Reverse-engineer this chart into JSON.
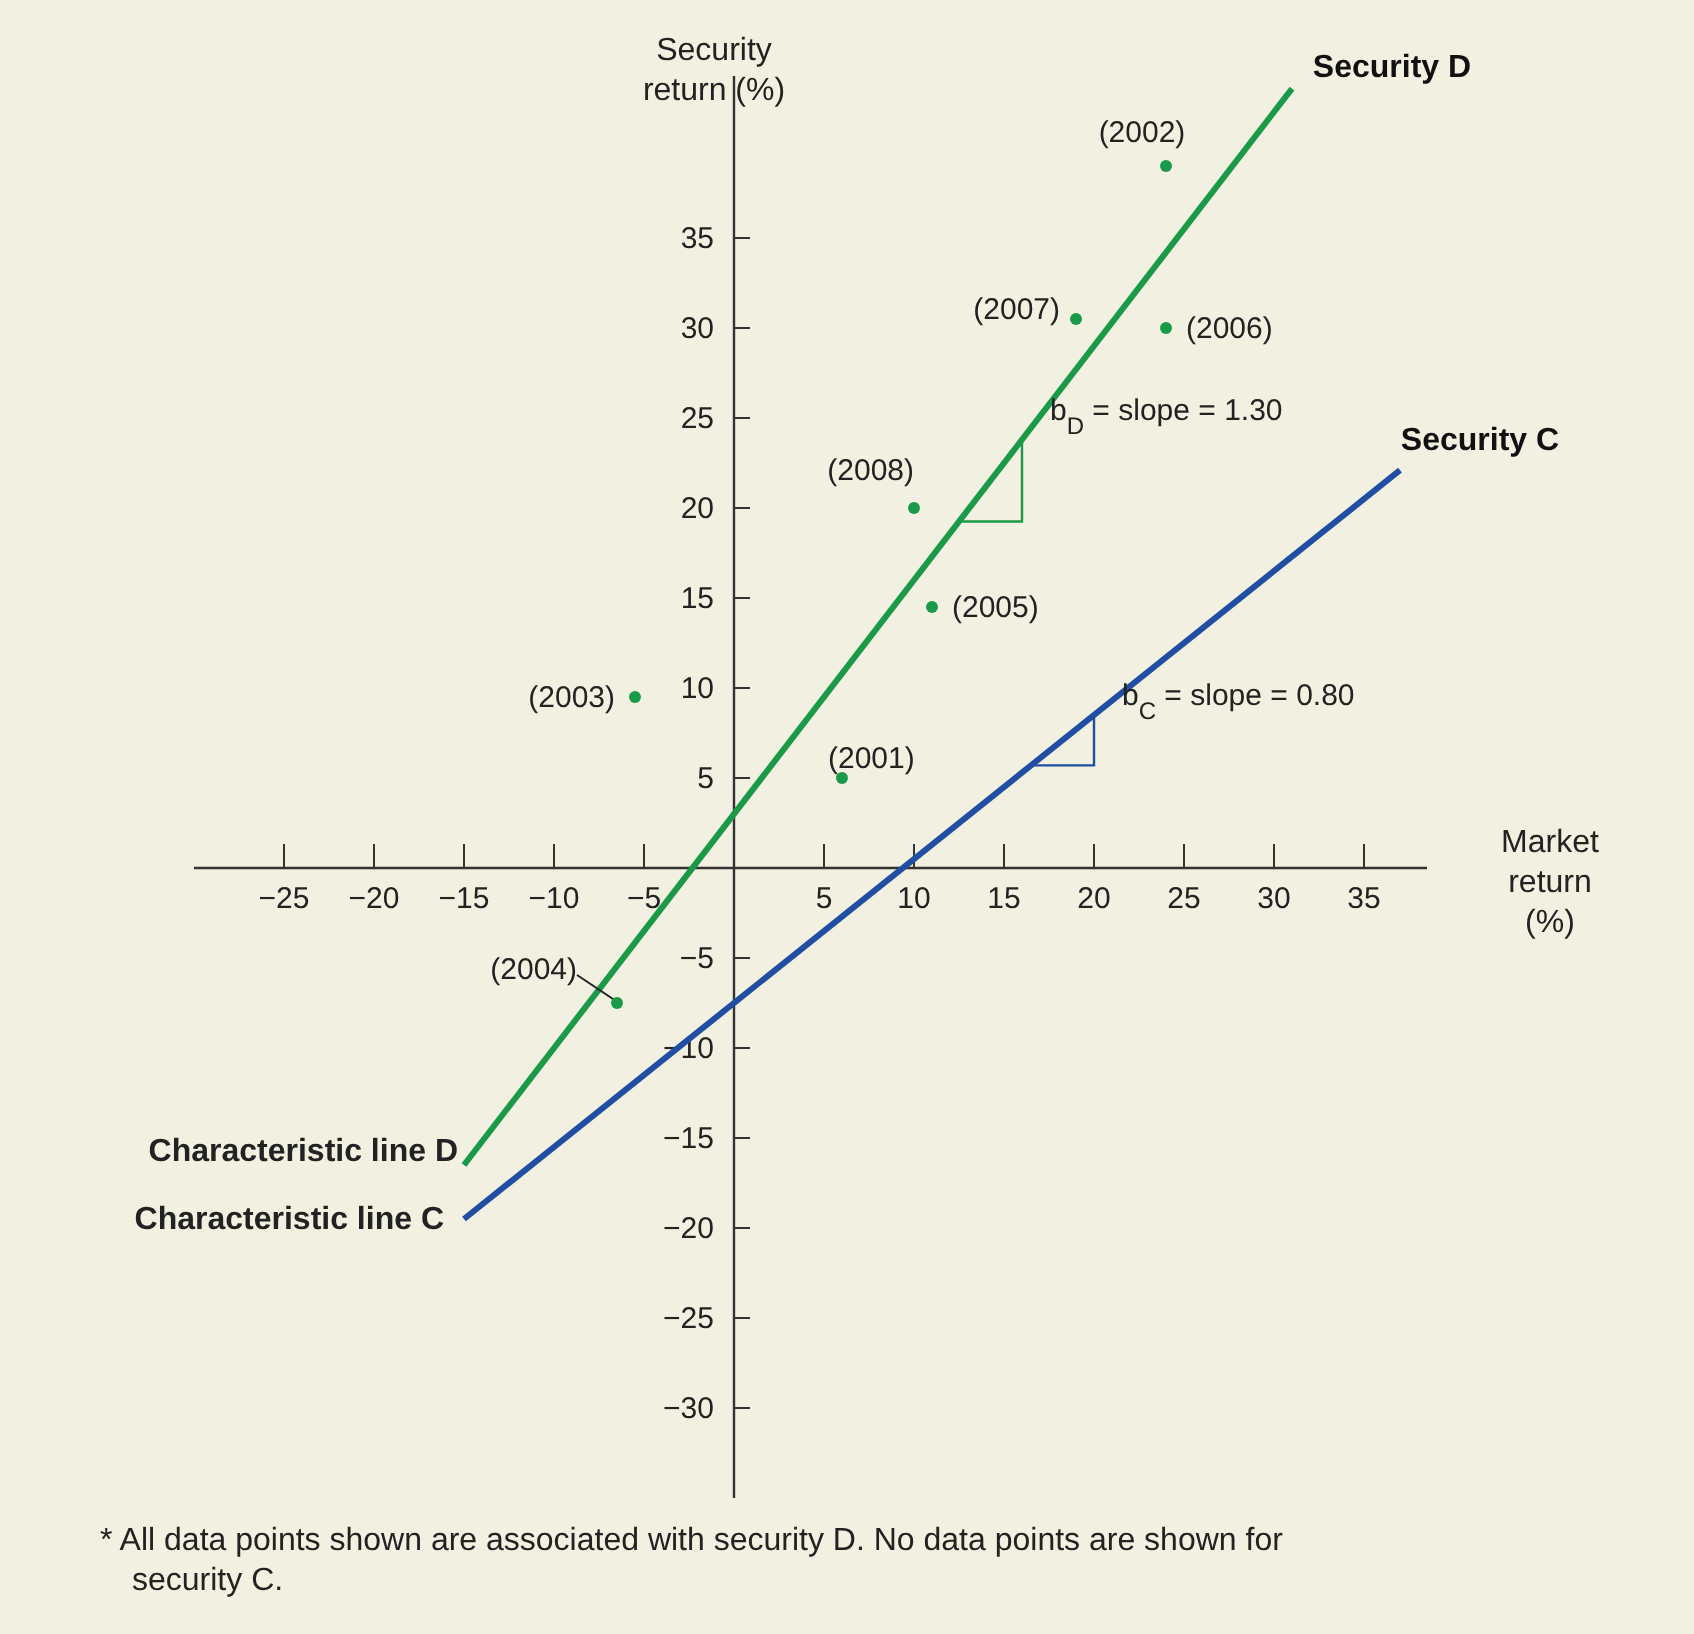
{
  "chart_data": {
    "type": "line",
    "xlabel": "Market return (%)",
    "ylabel": "Security return (%)",
    "xlim": [
      -30,
      38.5
    ],
    "ylim": [
      -35,
      44
    ],
    "xticks": [
      -25,
      -20,
      -15,
      -10,
      -5,
      5,
      10,
      15,
      20,
      25,
      30,
      35
    ],
    "yticks": [
      -30,
      -25,
      -20,
      -15,
      -10,
      -5,
      5,
      10,
      15,
      20,
      25,
      30,
      35
    ],
    "grid": false,
    "series": [
      {
        "name": "Security D",
        "color": "#1a9a48",
        "x": [
          -15,
          31
        ],
        "values": [
          -16.5,
          43.3
        ]
      },
      {
        "name": "Security C",
        "color": "#1f4ea3",
        "x": [
          -15,
          37
        ],
        "values": [
          -19.5,
          22.1
        ]
      },
      {
        "type": "scatter",
        "color": "#1a9a48",
        "marker": "circle",
        "x": [
          6,
          24,
          -5.5,
          -6.5,
          11,
          24,
          19,
          10
        ],
        "values": [
          5,
          39,
          9.5,
          -7.5,
          14.5,
          30,
          30.5,
          20
        ]
      }
    ],
    "annotations": [
      {
        "text": "(2001)",
        "x": 6,
        "y": 5
      },
      {
        "text": "(2002)",
        "x": 24,
        "y": 39
      },
      {
        "text": "(2003)",
        "x": -5.5,
        "y": 9.5
      },
      {
        "text": "(2004)",
        "x": -6.5,
        "y": -7.5
      },
      {
        "text": "(2005)",
        "x": 11,
        "y": 14.5
      },
      {
        "text": "(2006)",
        "x": 24,
        "y": 30
      },
      {
        "text": "(2007)",
        "x": 19,
        "y": 30.5
      },
      {
        "text": "(2008)",
        "x": 10,
        "y": 20
      },
      {
        "text": "b$_{D}$ = slope = 1.30",
        "x": 16,
        "y": 23.8
      },
      {
        "text": "b$_{C}$ = slope = 0.80",
        "x": 20,
        "y": 8.5
      },
      {
        "text": "Characteristic line D",
        "x": -15,
        "y": -16.5
      },
      {
        "text": "Characteristic line C",
        "x": -15,
        "y": -19.5
      },
      "* All data points shown are associated with security D. No data points are shown for security C."
    ]
  }
}
